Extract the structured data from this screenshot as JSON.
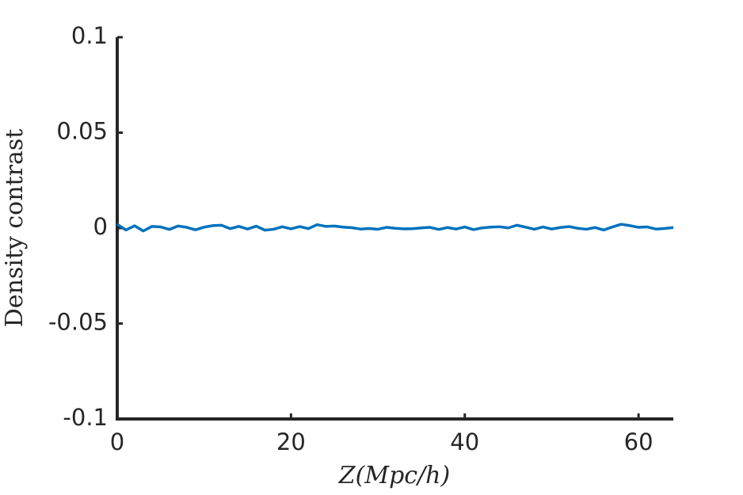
{
  "chart_data": {
    "type": "line",
    "xlabel": "Z(Mpc/h)",
    "ylabel": "Density contrast",
    "x": [
      0,
      1,
      2,
      3,
      4,
      5,
      6,
      7,
      8,
      9,
      10,
      11,
      12,
      13,
      14,
      15,
      16,
      17,
      18,
      19,
      20,
      21,
      22,
      23,
      24,
      25,
      26,
      27,
      28,
      29,
      30,
      31,
      32,
      33,
      34,
      35,
      36,
      37,
      38,
      39,
      40,
      41,
      42,
      43,
      44,
      45,
      46,
      47,
      48,
      49,
      50,
      51,
      52,
      53,
      54,
      55,
      56,
      57,
      58,
      59,
      60,
      61,
      62,
      63,
      64
    ],
    "series": [
      {
        "color": "#0072bd",
        "values": [
          0.002,
          -0.001,
          0.0012,
          -0.0015,
          0.0009,
          0.0006,
          -0.0007,
          0.0011,
          0.0004,
          -0.0009,
          0.0005,
          0.0013,
          0.0015,
          -0.0003,
          0.0009,
          -0.0005,
          0.001,
          -0.0011,
          -0.0006,
          0.0007,
          -0.0004,
          0.0008,
          -0.0003,
          0.0018,
          0.0009,
          0.0011,
          0.0005,
          0.0002,
          -0.0005,
          -0.0002,
          -0.0006,
          0.0004,
          -0.0001,
          -0.0004,
          -0.0003,
          0.0001,
          0.0004,
          -0.0007,
          0.0003,
          -0.0005,
          0.0006,
          -0.0008,
          0.0001,
          0.0005,
          0.0007,
          0.0001,
          0.0015,
          0.0005,
          -0.0006,
          0.0006,
          -0.0005,
          0.0003,
          0.0008,
          -0.0001,
          -0.0006,
          0.0003,
          -0.001,
          0.0006,
          0.002,
          0.0013,
          0.0004,
          0.0006,
          -0.0005,
          -0.0002,
          0.0003
        ]
      }
    ],
    "xlim": [
      0,
      64
    ],
    "xticks": [
      0,
      20,
      40,
      60
    ],
    "ylim": [
      -0.1,
      0.1
    ],
    "yticks": [
      -0.1,
      -0.05,
      0,
      0.05,
      0.1
    ],
    "grid": false
  }
}
